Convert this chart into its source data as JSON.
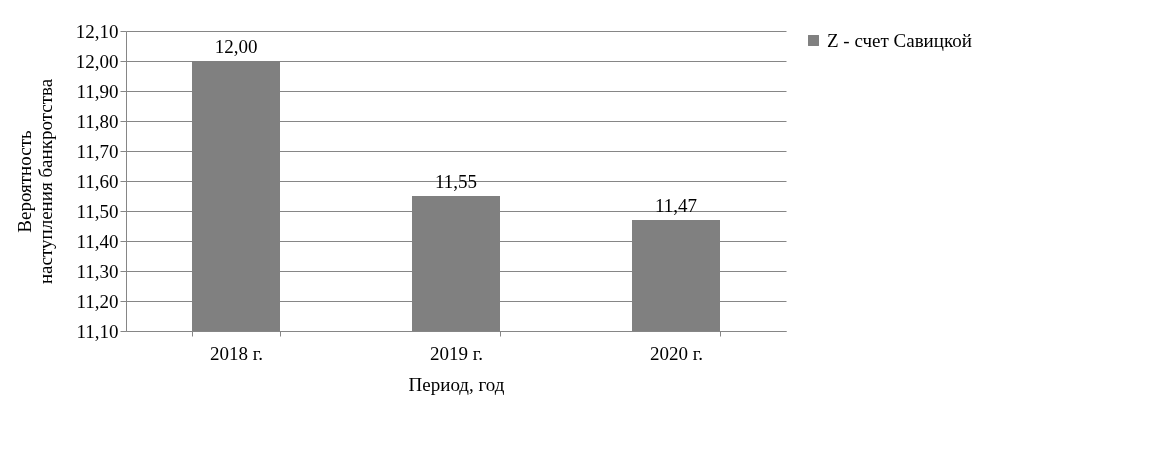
{
  "chart_data": {
    "type": "bar",
    "xlabel": "Период, год",
    "ylabel": "Вероятность наступления банкротства",
    "categories": [
      "2018 г.",
      "2019 г.",
      "2020 г."
    ],
    "series": [
      {
        "name": "Z - счет Савицкой",
        "color": "#808080",
        "values": [
          12.0,
          11.55,
          11.47
        ],
        "value_labels": [
          "12,00",
          "11,55",
          "11,47"
        ]
      }
    ],
    "ylim": [
      11.1,
      12.1
    ],
    "yticks": [
      {
        "value": 11.1,
        "label": "11,10"
      },
      {
        "value": 11.2,
        "label": "11,20"
      },
      {
        "value": 11.3,
        "label": "11,30"
      },
      {
        "value": 11.4,
        "label": "11,40"
      },
      {
        "value": 11.5,
        "label": "11,50"
      },
      {
        "value": 11.6,
        "label": "11,60"
      },
      {
        "value": 11.7,
        "label": "11,70"
      },
      {
        "value": 11.8,
        "label": "11,80"
      },
      {
        "value": 11.9,
        "label": "11,90"
      },
      {
        "value": 12.0,
        "label": "12,00"
      },
      {
        "value": 12.1,
        "label": "12,10"
      }
    ],
    "grid": "y",
    "legend": "right"
  }
}
